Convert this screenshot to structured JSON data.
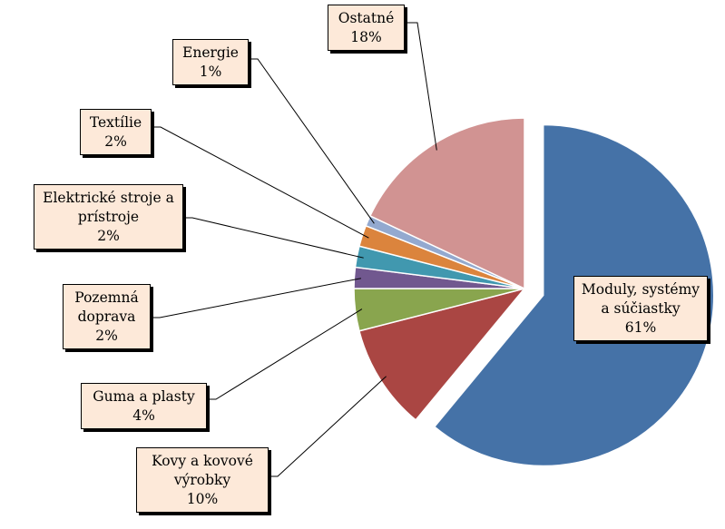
{
  "chart_data": {
    "type": "pie",
    "title": "",
    "slices": [
      {
        "label": "Moduly, systémy a súčiastky",
        "lines": [
          "Moduly, systémy",
          "a súčiastky"
        ],
        "value": 61,
        "value_label": "61%",
        "color": "#4572a7",
        "exploded": true
      },
      {
        "label": "Kovy a kovové výrobky",
        "lines": [
          "Kovy a kovové",
          "výrobky"
        ],
        "value": 10,
        "value_label": "10%",
        "color": "#aa4643",
        "exploded": false
      },
      {
        "label": "Guma a plasty",
        "lines": [
          "Guma a plasty"
        ],
        "value": 4,
        "value_label": "4%",
        "color": "#89a54e",
        "exploded": false
      },
      {
        "label": "Pozemná doprava",
        "lines": [
          "Pozemná",
          "doprava"
        ],
        "value": 2,
        "value_label": "2%",
        "color": "#71588f",
        "exploded": false
      },
      {
        "label": "Elektrické stroje a prístroje",
        "lines": [
          "Elektrické stroje a",
          "prístroje"
        ],
        "value": 2,
        "value_label": "2%",
        "color": "#4198af",
        "exploded": false
      },
      {
        "label": "Textílie",
        "lines": [
          "Textílie"
        ],
        "value": 2,
        "value_label": "2%",
        "color": "#db843d",
        "exploded": false
      },
      {
        "label": "Energie",
        "lines": [
          "Energie"
        ],
        "value": 1,
        "value_label": "1%",
        "color": "#93a9cf",
        "exploded": false
      },
      {
        "label": "Ostatné",
        "lines": [
          "Ostatné"
        ],
        "value": 18,
        "value_label": "18%",
        "color": "#d19392",
        "exploded": false
      }
    ]
  }
}
